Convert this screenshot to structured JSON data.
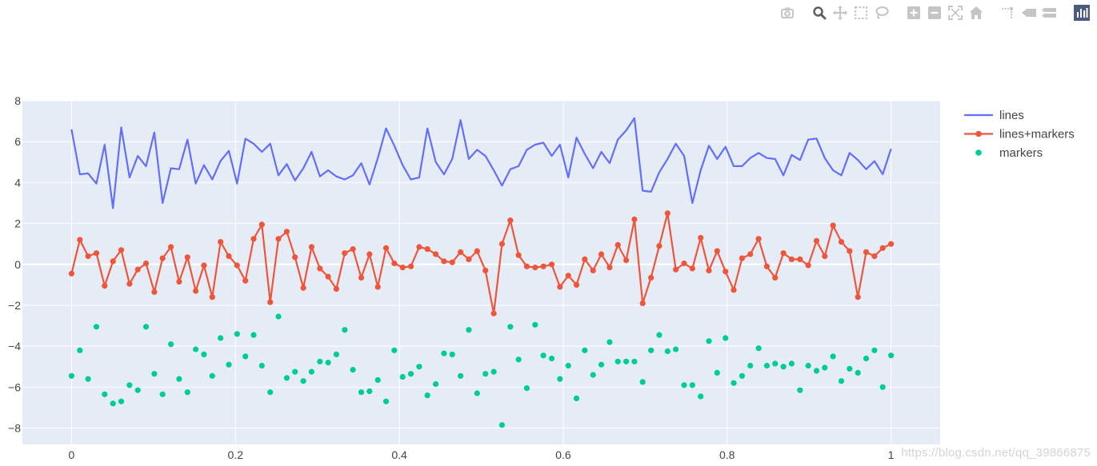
{
  "colors": {
    "plot_bg": "#E5ECF6",
    "grid": "#FFFFFF",
    "tick_text": "#444444",
    "lines": "#636EFA",
    "lines_markers": "#EF553B",
    "markers": "#00CC96",
    "modebar_icon": "#bbbbbb",
    "modebar_logo": "#2f3e69"
  },
  "modebar": {
    "groups": [
      [
        "camera-icon"
      ],
      [
        "zoom-icon",
        "pan-icon",
        "box-select-icon",
        "lasso-select-icon"
      ],
      [
        "zoom-in-icon",
        "zoom-out-icon",
        "autoscale-icon",
        "reset-axes-icon"
      ],
      [
        "spike-lines-icon",
        "hover-closest-icon",
        "hover-compare-icon"
      ],
      [
        "plotly-logo-icon"
      ]
    ],
    "active": "zoom-icon"
  },
  "watermark": "https://blog.csdn.net/qq_39866875",
  "chart_data": {
    "type": "scatter",
    "title": "",
    "xlabel": "",
    "ylabel": "",
    "xlim": [
      -0.06,
      1.06
    ],
    "ylim": [
      -8.8,
      8.0
    ],
    "xticks": [
      0,
      0.2,
      0.4,
      0.6,
      0.8,
      1
    ],
    "xtick_labels": [
      "0",
      "0.2",
      "0.4",
      "0.6",
      "0.8",
      "1"
    ],
    "yticks": [
      -8,
      -6,
      -4,
      -2,
      0,
      2,
      4,
      6,
      8
    ],
    "ytick_labels": [
      "−8",
      "−6",
      "−4",
      "−2",
      "0",
      "2",
      "4",
      "6",
      "8"
    ],
    "grid": true,
    "legend_position": "top-right",
    "x": [
      0.0,
      0.0101,
      0.0202,
      0.0303,
      0.0404,
      0.0505,
      0.0606,
      0.0707,
      0.0808,
      0.0909,
      0.101,
      0.1111,
      0.1212,
      0.1313,
      0.1414,
      0.1515,
      0.1616,
      0.1717,
      0.1818,
      0.1919,
      0.202,
      0.2121,
      0.2222,
      0.2323,
      0.2424,
      0.2525,
      0.2626,
      0.2727,
      0.2828,
      0.2929,
      0.303,
      0.3131,
      0.3232,
      0.3333,
      0.3434,
      0.3535,
      0.3636,
      0.3737,
      0.3838,
      0.3939,
      0.404,
      0.4141,
      0.4242,
      0.4343,
      0.4444,
      0.4545,
      0.4646,
      0.4747,
      0.4848,
      0.4949,
      0.5051,
      0.5152,
      0.5253,
      0.5354,
      0.5455,
      0.5556,
      0.5657,
      0.5758,
      0.5859,
      0.596,
      0.6061,
      0.6162,
      0.6263,
      0.6364,
      0.6465,
      0.6566,
      0.6667,
      0.6768,
      0.6869,
      0.697,
      0.7071,
      0.7172,
      0.7273,
      0.7374,
      0.7475,
      0.7576,
      0.7677,
      0.7778,
      0.7879,
      0.798,
      0.8081,
      0.8182,
      0.8283,
      0.8384,
      0.8485,
      0.8586,
      0.8687,
      0.8788,
      0.8889,
      0.899,
      0.9091,
      0.9192,
      0.9293,
      0.9394,
      0.9495,
      0.9596,
      0.9697,
      0.9798,
      0.9899,
      1.0
    ],
    "series": [
      {
        "name": "lines",
        "mode": "lines",
        "color": "#636EFA",
        "y": [
          6.6,
          4.4,
          4.45,
          3.95,
          5.85,
          2.75,
          6.7,
          4.25,
          5.3,
          4.8,
          6.45,
          3.0,
          4.7,
          4.65,
          6.1,
          3.95,
          4.85,
          4.15,
          5.05,
          5.55,
          3.95,
          6.15,
          5.9,
          5.5,
          5.9,
          4.35,
          4.9,
          4.1,
          4.7,
          5.5,
          4.3,
          4.6,
          4.3,
          4.15,
          4.35,
          4.95,
          3.9,
          5.2,
          6.65,
          5.8,
          4.85,
          4.15,
          4.25,
          6.65,
          5.0,
          4.4,
          5.15,
          7.05,
          5.15,
          5.6,
          5.3,
          4.6,
          3.85,
          4.65,
          4.8,
          5.6,
          5.85,
          5.95,
          5.3,
          5.85,
          4.25,
          6.2,
          5.4,
          4.7,
          5.5,
          4.95,
          6.1,
          6.55,
          7.15,
          3.6,
          3.55,
          4.5,
          5.15,
          5.9,
          5.3,
          3.0,
          4.6,
          5.8,
          5.15,
          5.75,
          4.8,
          4.8,
          5.2,
          5.45,
          5.2,
          5.15,
          4.35,
          5.35,
          5.1,
          6.1,
          6.15,
          5.2,
          4.6,
          4.35,
          5.45,
          5.1,
          4.65,
          5.05,
          4.4,
          5.65
        ]
      },
      {
        "name": "lines+markers",
        "mode": "lines+markers",
        "color": "#EF553B",
        "y": [
          -0.45,
          1.2,
          0.4,
          0.55,
          -1.05,
          0.15,
          0.7,
          -0.95,
          -0.25,
          0.05,
          -1.35,
          0.3,
          0.85,
          -0.85,
          0.35,
          -1.3,
          -0.05,
          -1.6,
          1.1,
          0.4,
          -0.05,
          -0.8,
          1.25,
          1.95,
          -1.85,
          1.25,
          1.6,
          0.35,
          -1.15,
          0.85,
          -0.2,
          -0.6,
          -1.2,
          0.55,
          0.75,
          -0.65,
          0.5,
          -1.1,
          0.8,
          0.05,
          -0.15,
          -0.1,
          0.85,
          0.75,
          0.5,
          0.15,
          0.1,
          0.6,
          0.25,
          0.65,
          -0.3,
          -2.4,
          1.0,
          2.15,
          0.45,
          -0.1,
          -0.15,
          -0.1,
          0.0,
          -1.1,
          -0.55,
          -1.0,
          0.25,
          -0.3,
          0.5,
          -0.15,
          0.95,
          0.2,
          2.2,
          -1.9,
          -0.65,
          0.9,
          2.5,
          -0.25,
          0.05,
          -0.2,
          1.3,
          -0.3,
          0.65,
          -0.35,
          -1.25,
          0.3,
          0.5,
          1.25,
          -0.1,
          -0.65,
          0.55,
          0.25,
          0.25,
          -0.05,
          1.15,
          0.4,
          1.9,
          1.1,
          0.65,
          -1.6,
          0.6,
          0.4,
          0.8,
          1.0
        ]
      },
      {
        "name": "markers",
        "mode": "markers",
        "color": "#00CC96",
        "y": [
          -5.45,
          -4.2,
          -5.6,
          -3.05,
          -6.35,
          -6.8,
          -6.7,
          -5.9,
          -6.15,
          -3.05,
          -5.35,
          -6.35,
          -3.9,
          -5.6,
          -6.25,
          -4.15,
          -4.4,
          -5.45,
          -3.6,
          -4.9,
          -3.4,
          -4.5,
          -3.45,
          -4.95,
          -6.25,
          -2.55,
          -5.55,
          -5.25,
          -5.7,
          -5.25,
          -4.75,
          -4.8,
          -4.4,
          -3.2,
          -5.15,
          -6.25,
          -6.2,
          -5.65,
          -6.7,
          -4.2,
          -5.5,
          -5.35,
          -5.0,
          -6.4,
          -5.85,
          -4.35,
          -4.4,
          -5.45,
          -3.2,
          -6.3,
          -5.35,
          -5.25,
          -7.85,
          -3.05,
          -4.65,
          -6.05,
          -2.95,
          -4.45,
          -4.6,
          -5.6,
          -4.95,
          -6.55,
          -4.2,
          -5.4,
          -4.9,
          -3.8,
          -4.75,
          -4.75,
          -4.75,
          -5.75,
          -4.2,
          -3.45,
          -4.25,
          -4.15,
          -5.9,
          -5.9,
          -6.45,
          -3.75,
          -5.3,
          -3.6,
          -5.8,
          -5.45,
          -4.95,
          -4.1,
          -4.95,
          -4.85,
          -5.0,
          -4.85,
          -6.15,
          -4.95,
          -5.2,
          -5.05,
          -4.5,
          -5.7,
          -5.1,
          -5.3,
          -4.6,
          -4.2,
          -6.0,
          -4.45
        ]
      }
    ]
  }
}
